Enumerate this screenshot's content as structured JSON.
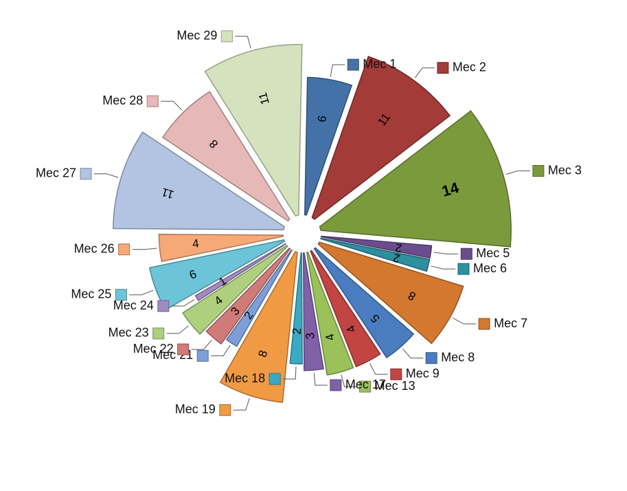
{
  "chart_data": {
    "type": "pie",
    "title": "",
    "exploded": true,
    "slices": [
      {
        "label": "Mec 1",
        "value": 6,
        "color": "#4472a8"
      },
      {
        "label": "Mec 2",
        "value": 11,
        "color": "#a33b39"
      },
      {
        "label": "Mec 3",
        "value": 14,
        "color": "#7a9a3c"
      },
      {
        "label": "Mec 5",
        "value": 2,
        "color": "#6b4d8e"
      },
      {
        "label": "Mec 6",
        "value": 2,
        "color": "#2e8fa0"
      },
      {
        "label": "Mec 7",
        "value": 8,
        "color": "#d3782e"
      },
      {
        "label": "Mec 8",
        "value": 5,
        "color": "#4a7cc0"
      },
      {
        "label": "Mec 9",
        "value": 4,
        "color": "#c24543"
      },
      {
        "label": "Mec 13",
        "value": 4,
        "color": "#9ac15a"
      },
      {
        "label": "Mec 17",
        "value": 3,
        "color": "#8061a8"
      },
      {
        "label": "Mec 18",
        "value": 2,
        "color": "#3aa9c3"
      },
      {
        "label": "Mec 19",
        "value": 8,
        "color": "#f09a44"
      },
      {
        "label": "Mec 21",
        "value": 2,
        "color": "#7b9fd6"
      },
      {
        "label": "Mec 22",
        "value": 3,
        "color": "#d17b79"
      },
      {
        "label": "Mec 23",
        "value": 4,
        "color": "#aecf7e"
      },
      {
        "label": "Mec 24",
        "value": 1,
        "color": "#a08bc2"
      },
      {
        "label": "Mec 25",
        "value": 6,
        "color": "#6cc4d8"
      },
      {
        "label": "Mec 26",
        "value": 4,
        "color": "#f6a977"
      },
      {
        "label": "Mec 27",
        "value": 11,
        "color": "#b3c4e3"
      },
      {
        "label": "Mec 28",
        "value": 8,
        "color": "#e6b8b7"
      },
      {
        "label": "Mec 29",
        "value": 11,
        "color": "#d4e3bd"
      }
    ]
  }
}
